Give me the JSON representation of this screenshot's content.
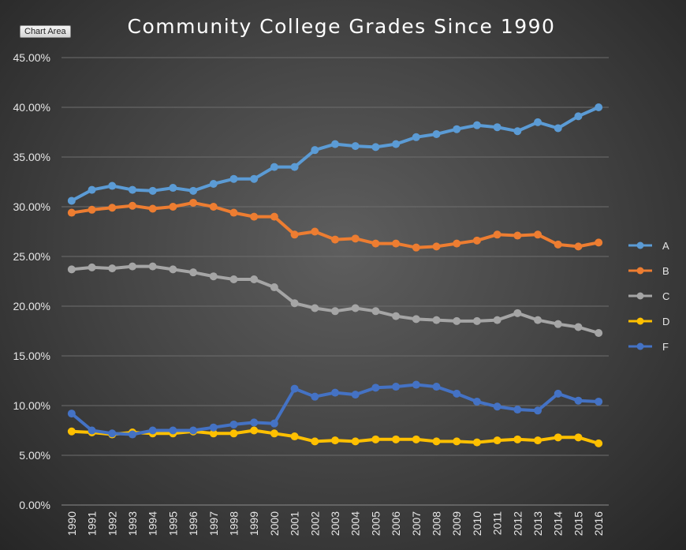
{
  "ui": {
    "chart_area_label": "Chart Area"
  },
  "chart_data": {
    "type": "line",
    "title": "Community College Grades Since 1990",
    "xlabel": "",
    "ylabel": "",
    "ylim": [
      0,
      45
    ],
    "y_ticks": [
      "0.00%",
      "5.00%",
      "10.00%",
      "15.00%",
      "20.00%",
      "25.00%",
      "30.00%",
      "35.00%",
      "40.00%",
      "45.00%"
    ],
    "grid": true,
    "legend_position": "right",
    "categories": [
      "1990",
      "1991",
      "1992",
      "1993",
      "1994",
      "1995",
      "1996",
      "1997",
      "1998",
      "1999",
      "2000",
      "2001",
      "2002",
      "2003",
      "2004",
      "2005",
      "2006",
      "2007",
      "2008",
      "2009",
      "2010",
      "2011",
      "2012",
      "2013",
      "2014",
      "2015",
      "2016"
    ],
    "series": [
      {
        "name": "A",
        "color": "#5b9bd5",
        "values": [
          30.6,
          31.7,
          32.1,
          31.7,
          31.6,
          31.9,
          31.6,
          32.3,
          32.8,
          32.8,
          34.0,
          34.0,
          35.7,
          36.3,
          36.1,
          36.0,
          36.3,
          37.0,
          37.3,
          37.8,
          38.2,
          38.0,
          37.6,
          38.5,
          37.9,
          39.1,
          40.0
        ]
      },
      {
        "name": "B",
        "color": "#ed7d31",
        "values": [
          29.4,
          29.7,
          29.9,
          30.1,
          29.8,
          30.0,
          30.4,
          30.0,
          29.4,
          29.0,
          29.0,
          27.2,
          27.5,
          26.7,
          26.8,
          26.3,
          26.3,
          25.9,
          26.0,
          26.3,
          26.6,
          27.2,
          27.1,
          27.2,
          26.2,
          26.0,
          26.4
        ]
      },
      {
        "name": "C",
        "color": "#a5a5a5",
        "values": [
          23.7,
          23.9,
          23.8,
          24.0,
          24.0,
          23.7,
          23.4,
          23.0,
          22.7,
          22.7,
          21.9,
          20.3,
          19.8,
          19.5,
          19.8,
          19.5,
          19.0,
          18.7,
          18.6,
          18.5,
          18.5,
          18.6,
          19.3,
          18.6,
          18.2,
          17.9,
          17.3
        ]
      },
      {
        "name": "D",
        "color": "#ffc000",
        "values": [
          7.4,
          7.3,
          7.1,
          7.3,
          7.2,
          7.2,
          7.4,
          7.2,
          7.2,
          7.5,
          7.2,
          6.9,
          6.4,
          6.5,
          6.4,
          6.6,
          6.6,
          6.6,
          6.4,
          6.4,
          6.3,
          6.5,
          6.6,
          6.5,
          6.8,
          6.8,
          6.2
        ]
      },
      {
        "name": "F",
        "color": "#4472c4",
        "values": [
          9.2,
          7.5,
          7.2,
          7.1,
          7.5,
          7.5,
          7.5,
          7.8,
          8.1,
          8.3,
          8.2,
          11.7,
          10.9,
          11.3,
          11.1,
          11.8,
          11.9,
          12.1,
          11.9,
          11.2,
          10.4,
          9.9,
          9.6,
          9.5,
          11.2,
          10.5,
          10.4
        ]
      }
    ]
  }
}
